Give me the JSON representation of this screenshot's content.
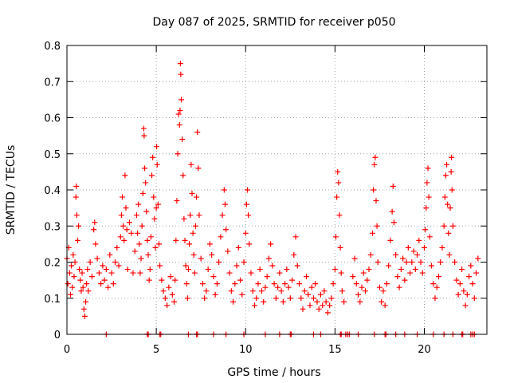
{
  "chart_data": {
    "type": "scatter",
    "title": "Day 087 of 2025, SRMTID for receiver p050",
    "xlabel": "GPS time / hours",
    "ylabel": "SRMTID / TECUs",
    "xlim": [
      0,
      23.5
    ],
    "ylim": [
      0,
      0.8
    ],
    "xticks": [
      0,
      5,
      10,
      15,
      20
    ],
    "xtick_labels": [
      "0",
      "5",
      "10",
      "15",
      "20"
    ],
    "yticks": [
      0,
      0.1,
      0.2,
      0.3,
      0.4,
      0.5,
      0.6,
      0.7,
      0.8
    ],
    "ytick_labels": [
      "0",
      "0.1",
      "0.2",
      "0.3",
      "0.4",
      "0.5",
      "0.6",
      "0.7",
      "0.8"
    ],
    "grid": true,
    "marker": "+",
    "color": "#ff0000",
    "zero_markers_x": [
      2.2,
      4.5,
      4.55,
      5.2,
      5.25,
      6.8,
      7.25,
      7.3,
      8.2,
      8.9,
      9.9,
      11.1,
      11.9,
      12.5,
      12.55,
      13.8,
      14.2,
      15.3,
      15.35,
      15.6,
      15.7,
      15.8,
      16.3,
      17.2,
      17.8,
      17.85,
      18.4,
      18.9,
      19.6,
      20.5,
      21.1,
      21.6,
      22.1,
      22.15,
      22.6,
      22.7,
      22.8
    ],
    "series": [
      {
        "name": "SRMTID",
        "points": [
          [
            0.0,
            0.21
          ],
          [
            0.05,
            0.14
          ],
          [
            0.1,
            0.24
          ],
          [
            0.15,
            0.17
          ],
          [
            0.2,
            0.11
          ],
          [
            0.25,
            0.19
          ],
          [
            0.3,
            0.13
          ],
          [
            0.35,
            0.22
          ],
          [
            0.4,
            0.16
          ],
          [
            0.45,
            0.2
          ],
          [
            0.5,
            0.38
          ],
          [
            0.52,
            0.41
          ],
          [
            0.55,
            0.33
          ],
          [
            0.6,
            0.26
          ],
          [
            0.65,
            0.3
          ],
          [
            0.7,
            0.18
          ],
          [
            0.75,
            0.15
          ],
          [
            0.8,
            0.12
          ],
          [
            0.85,
            0.17
          ],
          [
            0.9,
            0.13
          ],
          [
            0.95,
            0.07
          ],
          [
            1.0,
            0.05
          ],
          [
            1.05,
            0.09
          ],
          [
            1.1,
            0.14
          ],
          [
            1.15,
            0.18
          ],
          [
            1.2,
            0.12
          ],
          [
            1.3,
            0.2
          ],
          [
            1.4,
            0.16
          ],
          [
            1.5,
            0.29
          ],
          [
            1.55,
            0.31
          ],
          [
            1.6,
            0.25
          ],
          [
            1.7,
            0.21
          ],
          [
            1.8,
            0.17
          ],
          [
            1.9,
            0.14
          ],
          [
            2.0,
            0.19
          ],
          [
            2.1,
            0.15
          ],
          [
            2.2,
            0.18
          ],
          [
            2.3,
            0.13
          ],
          [
            2.4,
            0.22
          ],
          [
            2.5,
            0.17
          ],
          [
            2.6,
            0.14
          ],
          [
            2.7,
            0.2
          ],
          [
            2.8,
            0.24
          ],
          [
            2.9,
            0.19
          ],
          [
            3.0,
            0.27
          ],
          [
            3.05,
            0.33
          ],
          [
            3.1,
            0.38
          ],
          [
            3.15,
            0.3
          ],
          [
            3.2,
            0.26
          ],
          [
            3.25,
            0.44
          ],
          [
            3.3,
            0.35
          ],
          [
            3.35,
            0.29
          ],
          [
            3.4,
            0.18
          ],
          [
            3.5,
            0.31
          ],
          [
            3.6,
            0.28
          ],
          [
            3.7,
            0.17
          ],
          [
            3.8,
            0.23
          ],
          [
            3.9,
            0.33
          ],
          [
            3.95,
            0.28
          ],
          [
            4.0,
            0.36
          ],
          [
            4.05,
            0.25
          ],
          [
            4.1,
            0.17
          ],
          [
            4.15,
            0.21
          ],
          [
            4.2,
            0.3
          ],
          [
            4.25,
            0.39
          ],
          [
            4.3,
            0.57
          ],
          [
            4.32,
            0.55
          ],
          [
            4.35,
            0.46
          ],
          [
            4.4,
            0.42
          ],
          [
            4.45,
            0.34
          ],
          [
            4.5,
            0.26
          ],
          [
            4.55,
            0.22
          ],
          [
            4.6,
            0.15
          ],
          [
            4.65,
            0.18
          ],
          [
            4.7,
            0.27
          ],
          [
            4.75,
            0.44
          ],
          [
            4.8,
            0.49
          ],
          [
            4.85,
            0.38
          ],
          [
            4.9,
            0.32
          ],
          [
            4.95,
            0.24
          ],
          [
            5.0,
            0.35
          ],
          [
            5.02,
            0.52
          ],
          [
            5.05,
            0.47
          ],
          [
            5.1,
            0.36
          ],
          [
            5.15,
            0.25
          ],
          [
            5.2,
            0.19
          ],
          [
            5.3,
            0.15
          ],
          [
            5.4,
            0.12
          ],
          [
            5.5,
            0.1
          ],
          [
            5.6,
            0.08
          ],
          [
            5.7,
            0.13
          ],
          [
            5.8,
            0.16
          ],
          [
            5.9,
            0.11
          ],
          [
            6.0,
            0.09
          ],
          [
            6.05,
            0.15
          ],
          [
            6.1,
            0.26
          ],
          [
            6.15,
            0.37
          ],
          [
            6.2,
            0.5
          ],
          [
            6.25,
            0.61
          ],
          [
            6.3,
            0.58
          ],
          [
            6.33,
            0.62
          ],
          [
            6.35,
            0.75
          ],
          [
            6.37,
            0.72
          ],
          [
            6.4,
            0.65
          ],
          [
            6.45,
            0.54
          ],
          [
            6.5,
            0.44
          ],
          [
            6.55,
            0.32
          ],
          [
            6.6,
            0.26
          ],
          [
            6.65,
            0.19
          ],
          [
            6.7,
            0.14
          ],
          [
            6.75,
            0.1
          ],
          [
            6.8,
            0.18
          ],
          [
            6.85,
            0.25
          ],
          [
            6.9,
            0.33
          ],
          [
            6.95,
            0.47
          ],
          [
            7.0,
            0.39
          ],
          [
            7.05,
            0.28
          ],
          [
            7.1,
            0.22
          ],
          [
            7.15,
            0.17
          ],
          [
            7.2,
            0.3
          ],
          [
            7.25,
            0.38
          ],
          [
            7.3,
            0.56
          ],
          [
            7.35,
            0.46
          ],
          [
            7.4,
            0.33
          ],
          [
            7.5,
            0.21
          ],
          [
            7.6,
            0.14
          ],
          [
            7.7,
            0.1
          ],
          [
            7.8,
            0.12
          ],
          [
            7.9,
            0.18
          ],
          [
            8.0,
            0.25
          ],
          [
            8.1,
            0.22
          ],
          [
            8.2,
            0.16
          ],
          [
            8.3,
            0.11
          ],
          [
            8.4,
            0.14
          ],
          [
            8.5,
            0.2
          ],
          [
            8.6,
            0.27
          ],
          [
            8.7,
            0.33
          ],
          [
            8.8,
            0.4
          ],
          [
            8.85,
            0.36
          ],
          [
            8.9,
            0.29
          ],
          [
            9.0,
            0.23
          ],
          [
            9.1,
            0.17
          ],
          [
            9.2,
            0.12
          ],
          [
            9.3,
            0.09
          ],
          [
            9.4,
            0.14
          ],
          [
            9.5,
            0.19
          ],
          [
            9.6,
            0.24
          ],
          [
            9.7,
            0.15
          ],
          [
            9.8,
            0.11
          ],
          [
            9.9,
            0.2
          ],
          [
            10.0,
            0.28
          ],
          [
            10.05,
            0.36
          ],
          [
            10.1,
            0.4
          ],
          [
            10.15,
            0.33
          ],
          [
            10.2,
            0.25
          ],
          [
            10.3,
            0.17
          ],
          [
            10.4,
            0.12
          ],
          [
            10.5,
            0.08
          ],
          [
            10.6,
            0.1
          ],
          [
            10.7,
            0.14
          ],
          [
            10.8,
            0.18
          ],
          [
            10.9,
            0.12
          ],
          [
            11.0,
            0.09
          ],
          [
            11.1,
            0.13
          ],
          [
            11.2,
            0.16
          ],
          [
            11.3,
            0.21
          ],
          [
            11.4,
            0.25
          ],
          [
            11.5,
            0.19
          ],
          [
            11.6,
            0.14
          ],
          [
            11.7,
            0.1
          ],
          [
            11.8,
            0.13
          ],
          [
            11.9,
            0.17
          ],
          [
            12.0,
            0.12
          ],
          [
            12.1,
            0.09
          ],
          [
            12.2,
            0.14
          ],
          [
            12.3,
            0.18
          ],
          [
            12.4,
            0.13
          ],
          [
            12.5,
            0.1
          ],
          [
            12.6,
            0.15
          ],
          [
            12.7,
            0.22
          ],
          [
            12.8,
            0.27
          ],
          [
            12.9,
            0.19
          ],
          [
            13.0,
            0.14
          ],
          [
            13.1,
            0.1
          ],
          [
            13.2,
            0.07
          ],
          [
            13.3,
            0.12
          ],
          [
            13.4,
            0.16
          ],
          [
            13.5,
            0.11
          ],
          [
            13.6,
            0.08
          ],
          [
            13.7,
            0.13
          ],
          [
            13.8,
            0.1
          ],
          [
            13.9,
            0.14
          ],
          [
            14.0,
            0.09
          ],
          [
            14.1,
            0.07
          ],
          [
            14.2,
            0.11
          ],
          [
            14.3,
            0.08
          ],
          [
            14.4,
            0.12
          ],
          [
            14.5,
            0.09
          ],
          [
            14.6,
            0.06
          ],
          [
            14.7,
            0.08
          ],
          [
            14.8,
            0.1
          ],
          [
            14.9,
            0.14
          ],
          [
            15.0,
            0.18
          ],
          [
            15.05,
            0.27
          ],
          [
            15.1,
            0.38
          ],
          [
            15.15,
            0.45
          ],
          [
            15.2,
            0.42
          ],
          [
            15.25,
            0.33
          ],
          [
            15.3,
            0.24
          ],
          [
            15.35,
            0.17
          ],
          [
            15.4,
            0.12
          ],
          [
            15.5,
            0.09
          ],
          [
            16.0,
            0.16
          ],
          [
            16.1,
            0.21
          ],
          [
            16.2,
            0.14
          ],
          [
            16.3,
            0.11
          ],
          [
            16.4,
            0.09
          ],
          [
            16.5,
            0.13
          ],
          [
            16.6,
            0.17
          ],
          [
            16.7,
            0.12
          ],
          [
            16.8,
            0.15
          ],
          [
            16.9,
            0.18
          ],
          [
            17.0,
            0.22
          ],
          [
            17.1,
            0.28
          ],
          [
            17.15,
            0.4
          ],
          [
            17.2,
            0.47
          ],
          [
            17.25,
            0.49
          ],
          [
            17.3,
            0.37
          ],
          [
            17.35,
            0.3
          ],
          [
            17.4,
            0.2
          ],
          [
            17.5,
            0.13
          ],
          [
            17.6,
            0.09
          ],
          [
            17.7,
            0.12
          ],
          [
            17.8,
            0.08
          ],
          [
            17.9,
            0.14
          ],
          [
            18.0,
            0.19
          ],
          [
            18.1,
            0.26
          ],
          [
            18.2,
            0.34
          ],
          [
            18.25,
            0.41
          ],
          [
            18.3,
            0.31
          ],
          [
            18.4,
            0.22
          ],
          [
            18.5,
            0.16
          ],
          [
            18.6,
            0.13
          ],
          [
            18.7,
            0.18
          ],
          [
            18.8,
            0.21
          ],
          [
            18.9,
            0.15
          ],
          [
            19.0,
            0.2
          ],
          [
            19.1,
            0.24
          ],
          [
            19.2,
            0.17
          ],
          [
            19.3,
            0.2
          ],
          [
            19.4,
            0.23
          ],
          [
            19.5,
            0.18
          ],
          [
            19.6,
            0.22
          ],
          [
            19.7,
            0.26
          ],
          [
            19.8,
            0.2
          ],
          [
            19.9,
            0.17
          ],
          [
            20.0,
            0.24
          ],
          [
            20.05,
            0.29
          ],
          [
            20.1,
            0.35
          ],
          [
            20.15,
            0.42
          ],
          [
            20.2,
            0.46
          ],
          [
            20.25,
            0.38
          ],
          [
            20.3,
            0.27
          ],
          [
            20.4,
            0.19
          ],
          [
            20.5,
            0.14
          ],
          [
            20.6,
            0.1
          ],
          [
            20.7,
            0.13
          ],
          [
            20.8,
            0.16
          ],
          [
            20.9,
            0.2
          ],
          [
            21.0,
            0.24
          ],
          [
            21.1,
            0.3
          ],
          [
            21.15,
            0.38
          ],
          [
            21.2,
            0.44
          ],
          [
            21.25,
            0.47
          ],
          [
            21.3,
            0.36
          ],
          [
            21.35,
            0.28
          ],
          [
            21.4,
            0.22
          ],
          [
            21.45,
            0.35
          ],
          [
            21.5,
            0.45
          ],
          [
            21.52,
            0.49
          ],
          [
            21.55,
            0.4
          ],
          [
            21.6,
            0.3
          ],
          [
            21.7,
            0.2
          ],
          [
            21.8,
            0.15
          ],
          [
            21.9,
            0.11
          ],
          [
            22.0,
            0.14
          ],
          [
            22.1,
            0.18
          ],
          [
            22.2,
            0.12
          ],
          [
            22.3,
            0.08
          ],
          [
            22.4,
            0.11
          ],
          [
            22.5,
            0.16
          ],
          [
            22.6,
            0.19
          ],
          [
            22.7,
            0.14
          ],
          [
            22.8,
            0.1
          ],
          [
            22.9,
            0.17
          ],
          [
            23.0,
            0.21
          ]
        ]
      }
    ]
  }
}
